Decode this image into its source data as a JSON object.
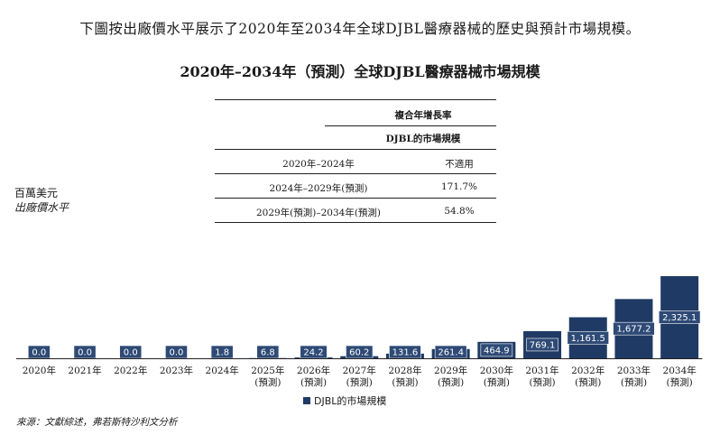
{
  "intro_text": "下圖按出廠價水平展示了2020年至2034年全球DJBL醫療器械的歷史與預計市場規模。",
  "title": "2020年–2034年（預測）全球DJBL醫療器械市場規模",
  "cagr_table": {
    "header": "複合年增長率",
    "subheader": "DJBL的市場規模",
    "rows": [
      {
        "period": "2020年–2024年",
        "value": "不適用"
      },
      {
        "period": "2024年–2029年(預測)",
        "value": "171.7%"
      },
      {
        "period": "2029年(預測)–2034年(預測)",
        "value": "54.8%"
      }
    ]
  },
  "unit_line1": "百萬美元",
  "unit_line2": "出廠價水平",
  "legend_label": "DJBL的市場規模",
  "source": "來源：文獻綜述，弗若斯特沙利文分析",
  "colors": {
    "bar": "#1f3a64",
    "label_bg": "#2e4a76",
    "label_text": "#ffffff"
  },
  "chart_data": {
    "type": "bar",
    "categories": [
      [
        "2020年"
      ],
      [
        "2021年"
      ],
      [
        "2022年"
      ],
      [
        "2023年"
      ],
      [
        "2024年"
      ],
      [
        "2025年",
        "(預測)"
      ],
      [
        "2026年",
        "(預測)"
      ],
      [
        "2027年",
        "(預測)"
      ],
      [
        "2028年",
        "(預測)"
      ],
      [
        "2029年",
        "(預測)"
      ],
      [
        "2030年",
        "(預測)"
      ],
      [
        "2031年",
        "(預測)"
      ],
      [
        "2032年",
        "(預測)"
      ],
      [
        "2033年",
        "(預測)"
      ],
      [
        "2034年",
        "(預測)"
      ]
    ],
    "series": [
      {
        "name": "DJBL的市場規模",
        "values": [
          0.0,
          0.0,
          0.0,
          0.0,
          1.8,
          6.8,
          24.2,
          60.2,
          131.6,
          261.4,
          464.9,
          769.1,
          1161.5,
          1677.2,
          2325.1
        ],
        "labels": [
          "0.0",
          "0.0",
          "0.0",
          "0.0",
          "1.8",
          "6.8",
          "24.2",
          "60.2",
          "131.6",
          "261.4",
          "464.9",
          "769.1",
          "1,161.5",
          "1,677.2",
          "2,325.1"
        ]
      }
    ],
    "ylim": [
      0,
      2325.1
    ],
    "grid": false,
    "legend": "bottom"
  }
}
